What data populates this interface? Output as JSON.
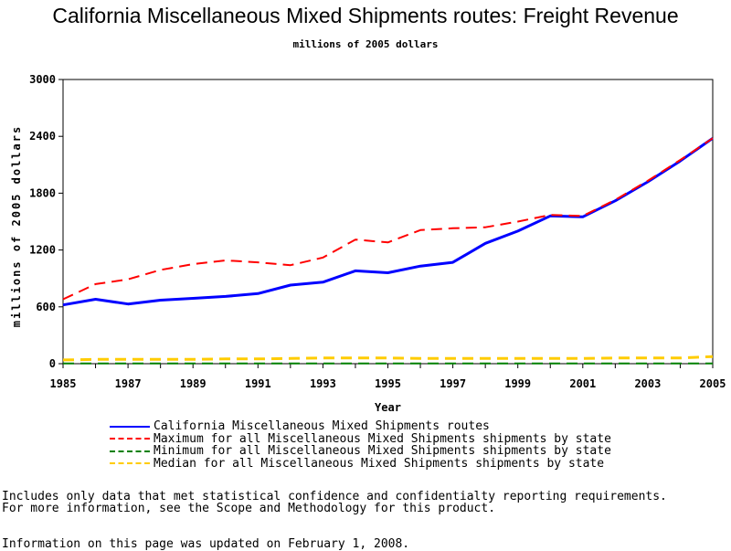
{
  "title": "California Miscellaneous Mixed Shipments routes: Freight Revenue",
  "subtitle": "millions of 2005 dollars",
  "notes": {
    "line1": "Includes only data that met statistical confidence and confidentialty reporting requirements.",
    "line2": "For more information, see the Scope and Methodology for this product.",
    "updated": "Information on this page was updated on February 1, 2008."
  },
  "chart_data": {
    "type": "line",
    "xlabel": "Year",
    "ylabel": "millions of 2005 dollars",
    "xlim": [
      1985,
      2005
    ],
    "ylim": [
      0,
      3000
    ],
    "x_ticks": [
      "1985",
      "1987",
      "1989",
      "1991",
      "1993",
      "1995",
      "1997",
      "1999",
      "2001",
      "2003",
      "2005"
    ],
    "y_ticks": [
      "0",
      "600",
      "1200",
      "1800",
      "2400",
      "3000"
    ],
    "grid": false,
    "legend_position": "bottom",
    "x": [
      1985,
      1986,
      1987,
      1988,
      1989,
      1990,
      1991,
      1992,
      1993,
      1994,
      1995,
      1996,
      1997,
      1998,
      1999,
      2000,
      2001,
      2002,
      2003,
      2004,
      2005
    ],
    "series": [
      {
        "name": "California Miscellaneous Mixed Shipments routes",
        "color": "#0000ff",
        "dash": "solid",
        "width": 3,
        "values": [
          620,
          680,
          630,
          670,
          690,
          710,
          740,
          830,
          860,
          980,
          960,
          1030,
          1070,
          1270,
          1400,
          1560,
          1550,
          1720,
          1920,
          2140,
          2380
        ]
      },
      {
        "name": "Maximum for all Miscellaneous Mixed Shipments shipments by state",
        "color": "#ff0000",
        "dash": "dashed",
        "width": 2,
        "values": [
          680,
          840,
          890,
          990,
          1050,
          1090,
          1070,
          1040,
          1120,
          1310,
          1280,
          1410,
          1430,
          1440,
          1500,
          1570,
          1560,
          1730,
          1930,
          2150,
          2380
        ]
      },
      {
        "name": "Minimum for all Miscellaneous Mixed Shipments shipments by state",
        "color": "#008000",
        "dash": "dashed",
        "width": 2,
        "values": [
          2,
          2,
          2,
          2,
          2,
          2,
          2,
          2,
          2,
          2,
          2,
          2,
          2,
          2,
          2,
          2,
          2,
          2,
          2,
          2,
          2
        ]
      },
      {
        "name": "Median for all Miscellaneous Mixed Shipments shipments by state",
        "color": "#ffcc00",
        "dash": "dashed",
        "width": 3,
        "values": [
          40,
          45,
          45,
          45,
          45,
          50,
          50,
          55,
          60,
          60,
          60,
          55,
          55,
          55,
          55,
          55,
          55,
          60,
          60,
          60,
          75
        ]
      }
    ]
  }
}
